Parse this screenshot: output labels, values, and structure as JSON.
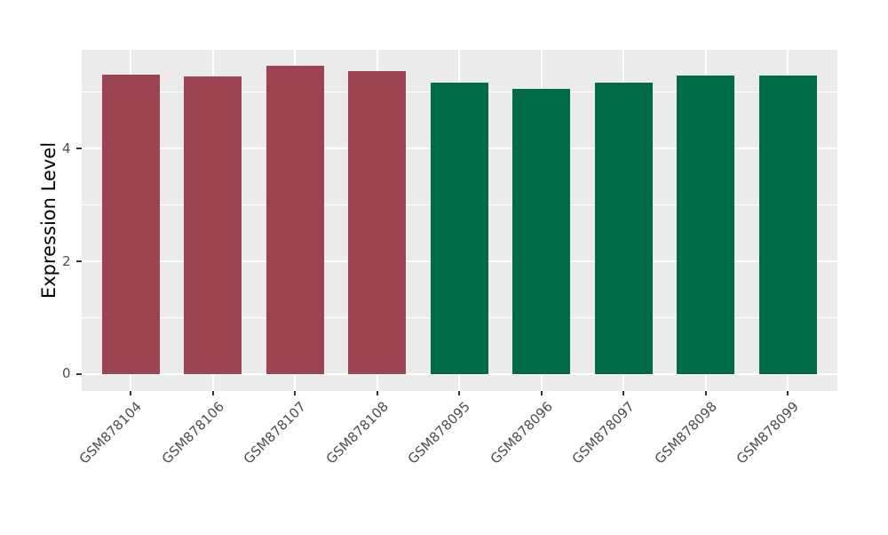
{
  "chart_data": {
    "type": "bar",
    "title": "",
    "xlabel": "",
    "ylabel": "Expression Level",
    "categories": [
      "GSM878104",
      "GSM878106",
      "GSM878107",
      "GSM878108",
      "GSM878095",
      "GSM878096",
      "GSM878097",
      "GSM878098",
      "GSM878099"
    ],
    "values": [
      5.31,
      5.28,
      5.46,
      5.37,
      5.16,
      5.05,
      5.17,
      5.29,
      5.29
    ],
    "bar_colors": [
      "#9D4453",
      "#9D4453",
      "#9D4453",
      "#9D4453",
      "#006B47",
      "#006B47",
      "#006B47",
      "#006B47",
      "#006B47"
    ],
    "ylim": [
      -0.3,
      5.75
    ],
    "yticks": [
      0,
      2,
      4
    ],
    "yticks_minor": [
      1,
      3,
      5
    ],
    "grid": true,
    "legend": "none",
    "colors": {
      "group_a_bar": "#9D4453",
      "group_b_bar": "#006B47",
      "panel_background": "#EBEBEB",
      "gridline": "#FFFFFF",
      "axis_text": "#4D4D4D",
      "axis_title": "#000000",
      "tick_mark": "#333333",
      "page_background": "#FFFFFF"
    }
  }
}
